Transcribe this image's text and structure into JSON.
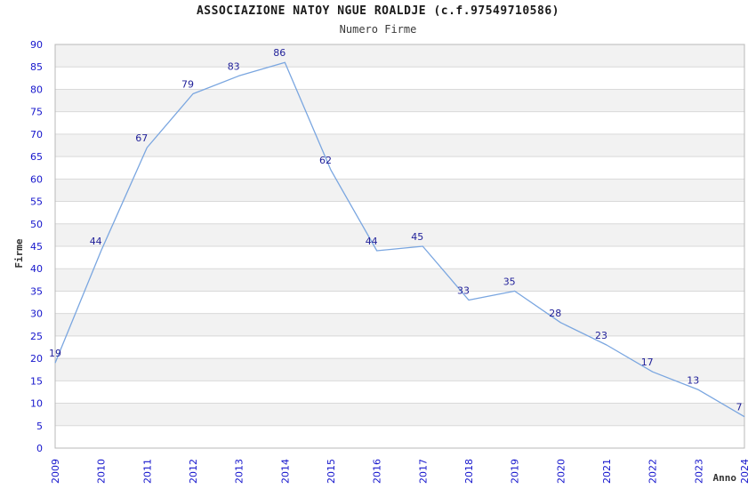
{
  "header": {
    "title": "ASSOCIAZIONE NATOY NGUE ROALDJE (c.f.97549710586)",
    "subtitle": "Numero Firme"
  },
  "chart_data": {
    "type": "line",
    "title": "ASSOCIAZIONE NATOY NGUE ROALDJE (c.f.97549710586)",
    "subtitle": "Numero Firme",
    "xlabel": "Anno",
    "ylabel": "Firme",
    "categories": [
      "2009",
      "2010",
      "2011",
      "2012",
      "2013",
      "2014",
      "2015",
      "2016",
      "2017",
      "2018",
      "2019",
      "2020",
      "2021",
      "2022",
      "2023",
      "2024"
    ],
    "values": [
      19,
      44,
      67,
      79,
      83,
      86,
      62,
      44,
      45,
      33,
      35,
      28,
      23,
      17,
      13,
      7
    ],
    "ylim": [
      0,
      90
    ],
    "yticks": [
      0,
      5,
      10,
      15,
      20,
      25,
      30,
      35,
      40,
      45,
      50,
      55,
      60,
      65,
      70,
      75,
      80,
      85,
      90
    ],
    "grid": true,
    "legend": "none",
    "colors": {
      "line": "#7aa6e0",
      "data_label": "#22229a",
      "tick_label": "#1515cc",
      "axis_title": "#333333",
      "band": "#f2f2f2",
      "gridline": "#d9d9d9",
      "frame": "#b8b8b8",
      "background": "#ffffff"
    }
  }
}
